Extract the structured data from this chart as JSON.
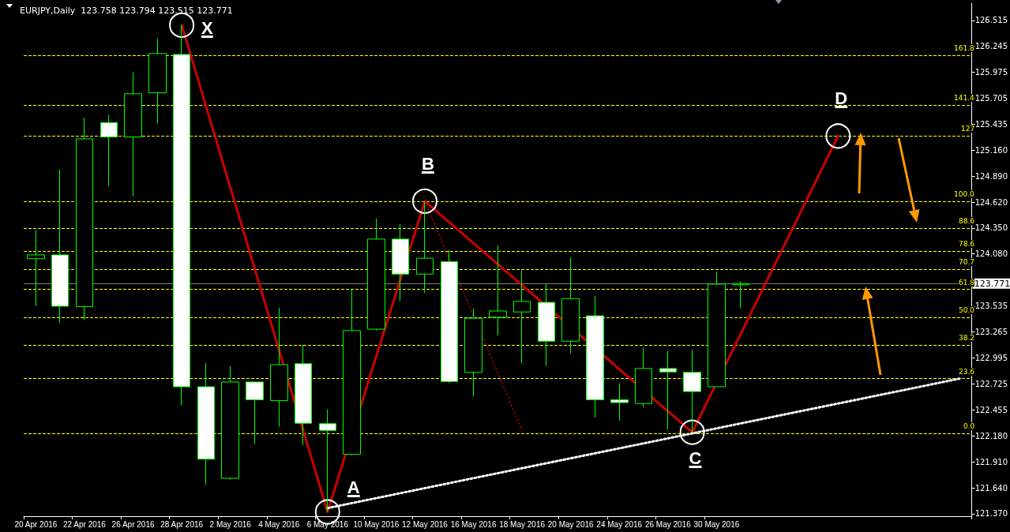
{
  "chart_data": {
    "type": "candlestick",
    "title": "EURJPY,Daily  123.758 123.794 123.515 123.771",
    "categories": [
      "20 Apr 2016",
      null,
      "22 Apr 2016",
      null,
      "26 Apr 2016",
      null,
      "28 Apr 2016",
      null,
      "2 May 2016",
      null,
      "4 May 2016",
      null,
      "6 May 2016",
      null,
      "10 May 2016",
      null,
      "12 May 2016",
      null,
      "16 May 2016",
      null,
      "18 May 2016",
      null,
      "20 May 2016",
      null,
      "24 May 2016",
      null,
      "26 May 2016",
      null,
      "30 May 2016",
      null,
      null,
      null,
      null,
      null,
      null,
      null,
      null,
      null,
      null
    ],
    "series": [
      {
        "type": "candlestick",
        "color": "#00ff00",
        "ohlc": [
          [
            124.03,
            124.33,
            123.535,
            124.07
          ],
          [
            124.07,
            124.96,
            123.36,
            123.535
          ],
          [
            123.53,
            125.5,
            123.39,
            125.28
          ],
          [
            125.45,
            125.53,
            124.79,
            125.3
          ],
          [
            125.3,
            125.98,
            124.68,
            125.75
          ],
          [
            125.76,
            126.325,
            125.44,
            126.17
          ],
          [
            126.16,
            126.465,
            122.5,
            122.695
          ],
          [
            122.695,
            122.94,
            121.675,
            121.94
          ],
          [
            121.74,
            122.91,
            121.725,
            122.745
          ],
          [
            122.745,
            122.75,
            122.1,
            122.56
          ],
          [
            122.55,
            123.52,
            122.28,
            122.925
          ],
          [
            122.935,
            123.13,
            122.085,
            122.315
          ],
          [
            122.31,
            122.46,
            121.39,
            122.24
          ],
          [
            121.99,
            123.71,
            121.98,
            123.28
          ],
          [
            123.295,
            124.45,
            123.28,
            124.235
          ],
          [
            124.235,
            124.39,
            123.59,
            123.87
          ],
          [
            123.87,
            124.63,
            123.675,
            124.035
          ],
          [
            124.0,
            124.12,
            122.735,
            122.75
          ],
          [
            122.845,
            123.51,
            122.595,
            123.41
          ],
          [
            123.42,
            124.17,
            123.23,
            123.485
          ],
          [
            123.475,
            123.91,
            122.94,
            123.585
          ],
          [
            123.575,
            123.765,
            122.91,
            123.17
          ],
          [
            123.17,
            124.045,
            123.04,
            123.615
          ],
          [
            123.435,
            123.64,
            122.375,
            122.56
          ],
          [
            122.56,
            122.73,
            122.34,
            122.53
          ],
          [
            122.52,
            123.105,
            122.48,
            122.885
          ],
          [
            122.885,
            123.065,
            122.25,
            122.85
          ],
          [
            122.845,
            123.08,
            122.22,
            122.645
          ],
          [
            122.695,
            123.895,
            122.695,
            123.765
          ],
          [
            123.758,
            123.794,
            123.515,
            123.771
          ],
          null,
          null,
          null,
          null,
          null,
          null,
          null,
          null,
          null
        ]
      },
      {
        "type": "line",
        "color": "#cc0000",
        "marker": "circle",
        "values": [
          null,
          null,
          null,
          null,
          null,
          null,
          126.465,
          null,
          null,
          null,
          null,
          null,
          121.39,
          null,
          null,
          null,
          124.63,
          null,
          null,
          null,
          null,
          null,
          null,
          null,
          null,
          null,
          null,
          122.22,
          null,
          null,
          null,
          null,
          null,
          125.31,
          null,
          null,
          null,
          null,
          null
        ]
      },
      {
        "type": "line",
        "color": "#ff0000",
        "line_style": "dotted",
        "values": [
          null,
          null,
          null,
          null,
          null,
          null,
          null,
          null,
          null,
          null,
          null,
          null,
          null,
          null,
          null,
          null,
          124.63,
          null,
          null,
          null,
          122.24,
          null,
          null,
          null,
          null,
          null,
          null,
          null,
          null,
          null,
          null,
          null,
          null,
          null,
          null,
          null,
          null,
          null,
          null
        ]
      },
      {
        "type": "line",
        "color": "#ffffff",
        "line_style": "dotted",
        "values": [
          null,
          null,
          null,
          null,
          null,
          null,
          null,
          null,
          null,
          null,
          null,
          null,
          121.43,
          null,
          null,
          null,
          null,
          null,
          null,
          null,
          null,
          null,
          null,
          null,
          null,
          null,
          null,
          null,
          null,
          null,
          null,
          null,
          null,
          null,
          null,
          null,
          null,
          null,
          122.78
        ]
      }
    ],
    "ylim": [
      121.345,
      126.695
    ],
    "yticks": [
      {
        "value": 121.37,
        "label": "121.370"
      },
      {
        "value": 121.64,
        "label": "121.640"
      },
      {
        "value": 121.91,
        "label": "121.910"
      },
      {
        "value": 122.18,
        "label": "122.180"
      },
      122.455,
      122.725,
      122.995,
      123.265,
      123.535,
      {
        "value": 124.08,
        "label": "124.080"
      },
      {
        "value": 124.35,
        "label": "124.350"
      },
      {
        "value": 124.62,
        "label": "124.620"
      },
      {
        "value": 124.89,
        "label": "124.890"
      },
      {
        "value": 125.16,
        "label": "125.160"
      },
      125.435,
      125.705,
      125.975,
      126.245,
      126.515
    ],
    "ref_lines": [
      {
        "axis": "y",
        "value": 122.21,
        "color": "#ffff00",
        "line_style": "dashed"
      },
      {
        "axis": "y",
        "value": 122.78,
        "color": "#ffff00",
        "line_style": "dashed"
      },
      {
        "axis": "y",
        "value": 123.13,
        "color": "#ffff00",
        "line_style": "dashed"
      },
      {
        "axis": "y",
        "value": 123.42,
        "color": "#ffff00",
        "line_style": "dashed"
      },
      {
        "axis": "y",
        "value": 123.71,
        "color": "#ffff00",
        "line_style": "dashed"
      },
      {
        "axis": "y",
        "value": 123.92,
        "color": "#ffff00",
        "line_style": "dashed"
      },
      {
        "axis": "y",
        "value": 124.11,
        "color": "#ffff00",
        "line_style": "dashed"
      },
      {
        "axis": "y",
        "value": 124.35,
        "color": "#ffff00",
        "line_style": "dashed"
      },
      {
        "axis": "y",
        "value": 124.63,
        "color": "#ffff00",
        "line_style": "dashed"
      },
      {
        "axis": "y",
        "value": 125.31,
        "color": "#ffff00",
        "line_style": "dashed"
      },
      {
        "axis": "y",
        "value": 125.63,
        "color": "#ffff00",
        "line_style": "dashed"
      },
      {
        "axis": "y",
        "value": 126.15,
        "color": "#ffff00",
        "line_style": "dashed"
      },
      {
        "axis": "y",
        "value": 123.771,
        "label": "123.771",
        "color": "#808080",
        "line_style": "solid"
      }
    ],
    "annotations": [
      "X",
      "A",
      "B",
      "C",
      "D",
      {
        "text": "0.0",
        "y": 122.21
      },
      {
        "text": "23.6",
        "y": 122.78
      },
      {
        "text": "38.2",
        "y": 123.13
      },
      {
        "text": "50.0",
        "y": 123.42
      },
      {
        "text": "61.8",
        "y": 123.71
      },
      {
        "text": "70.7",
        "y": 123.92
      },
      {
        "text": "78.6",
        "y": 124.11
      },
      {
        "text": "88.6",
        "y": 124.35
      },
      {
        "text": "100.0",
        "y": 124.63
      },
      {
        "text": "127",
        "y": 125.31
      },
      {
        "text": "141.4",
        "y": 125.63
      },
      {
        "text": "161.8",
        "y": 126.15
      }
    ],
    "grid": false
  }
}
